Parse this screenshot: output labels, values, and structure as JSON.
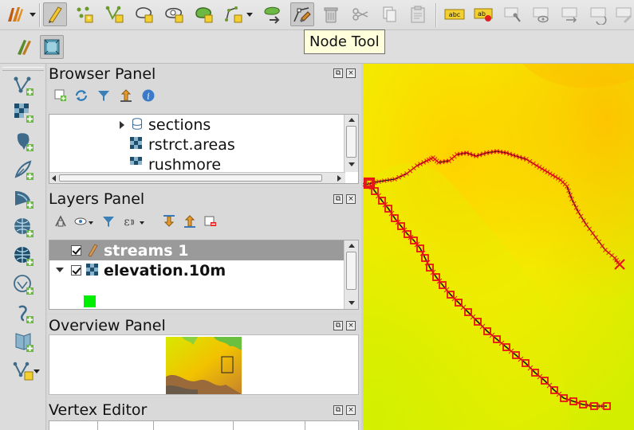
{
  "tooltip": {
    "text": "Node Tool"
  },
  "toolbar_top": {
    "buttons": [
      "current-edits-icon",
      "toggle-editing-icon",
      "add-point-icon",
      "add-line-icon",
      "add-polygon-icon",
      "add-ring-icon",
      "fill-ring-icon",
      "add-part-icon",
      "offset-curve-icon",
      "node-tool-icon",
      "delete-selected-icon",
      "cut-features-icon",
      "copy-features-icon",
      "paste-features-icon",
      "layer-labeling-icon",
      "layer-diagram-icon",
      "pin-labels-icon",
      "show-hide-labels-icon",
      "move-label-icon",
      "rotate-label-icon",
      "change-label-icon"
    ],
    "label_badge_text": "abc",
    "pin_badge_text": "ab"
  },
  "browser_panel": {
    "title": "Browser Panel",
    "items": [
      {
        "label": "sections",
        "icon": "database-icon"
      },
      {
        "label": "rstrct.areas",
        "icon": "raster-icon"
      },
      {
        "label": "rushmore",
        "icon": "raster-icon"
      }
    ]
  },
  "layers_panel": {
    "title": "Layers Panel",
    "layers": [
      {
        "label": "streams 1",
        "checked": true,
        "selected": true
      },
      {
        "label": "elevation.10m",
        "checked": true,
        "selected": false
      }
    ]
  },
  "overview_panel": {
    "title": "Overview Panel"
  },
  "vertex_editor": {
    "title": "Vertex Editor"
  },
  "colors": {
    "accent_selected_row": "#9a9a9a",
    "vector_line": "#1a1a1a",
    "vertex_marker": "#e8121a",
    "legend_green": "#00ee00"
  }
}
